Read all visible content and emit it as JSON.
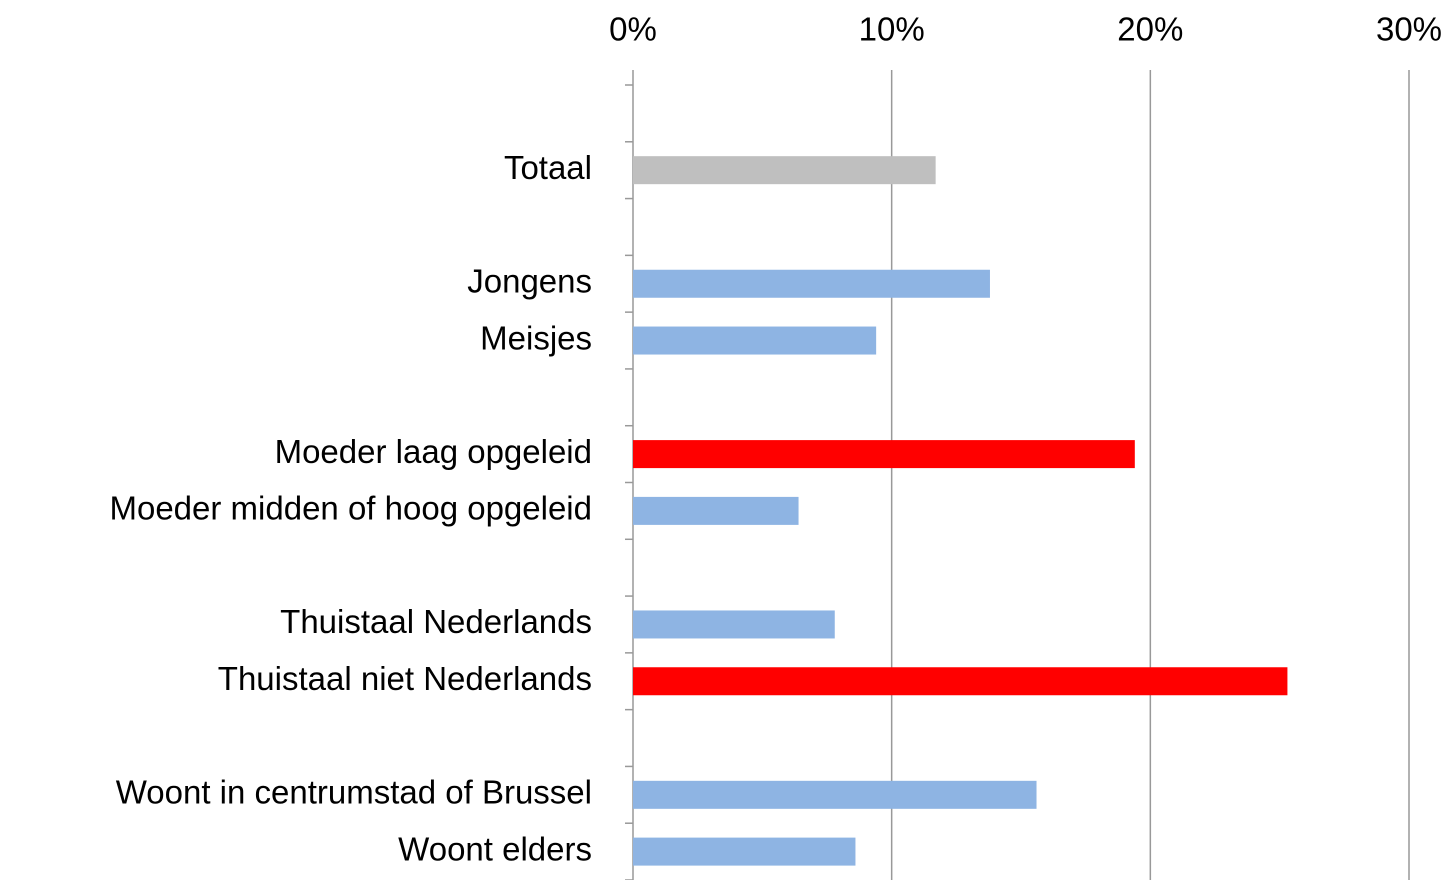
{
  "chart_data": {
    "type": "hbar",
    "categories": [
      null,
      "Totaal",
      null,
      "Jongens",
      "Meisjes",
      null,
      "Moeder laag opgeleid",
      "Moeder midden of hoog opgeleid",
      null,
      "Thuistaal Nederlands",
      "Thuistaal niet Nederlands",
      null,
      "Woont in centrumstad of Brussel",
      "Woont elders"
    ],
    "values": [
      null,
      11.7,
      null,
      13.8,
      9.4,
      null,
      19.4,
      6.4,
      null,
      7.8,
      25.3,
      null,
      15.6,
      8.6
    ],
    "colors": [
      null,
      "#bfbfbf",
      null,
      "#8eb4e3",
      "#8eb4e3",
      null,
      "#ff0000",
      "#8eb4e3",
      null,
      "#8eb4e3",
      "#ff0000",
      null,
      "#8eb4e3",
      "#8eb4e3"
    ],
    "xlim": [
      0,
      30
    ],
    "xticks": [
      {
        "value": 0,
        "label": "0%"
      },
      {
        "value": 10,
        "label": "10%"
      },
      {
        "value": 20,
        "label": "20%"
      },
      {
        "value": 30,
        "label": "30%"
      }
    ],
    "grid": true
  }
}
